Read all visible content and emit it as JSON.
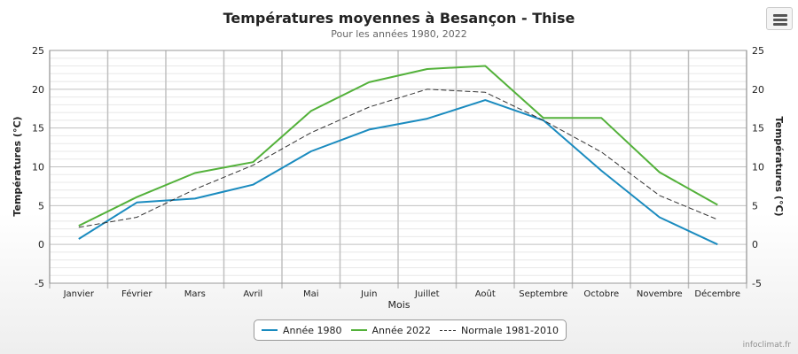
{
  "chart_data": {
    "type": "line",
    "title": "Températures moyennes à Besançon - Thise",
    "subtitle": "Pour les années 1980, 2022",
    "xlabel": "Mois",
    "ylabel": "Températures (°C)",
    "ylabel_right": "Températures (°C)",
    "ylim": [
      -5,
      25
    ],
    "yticks": [
      -5,
      0,
      5,
      10,
      15,
      20,
      25
    ],
    "grid": true,
    "legend_position": "bottom",
    "categories": [
      "Janvier",
      "Février",
      "Mars",
      "Avril",
      "Mai",
      "Juin",
      "Juillet",
      "Août",
      "Septembre",
      "Octobre",
      "Novembre",
      "Décembre"
    ],
    "series": [
      {
        "name": "Année 1980",
        "color": "#1a8bbf",
        "style": "solid",
        "values": [
          0.7,
          5.4,
          5.9,
          7.7,
          12.0,
          14.8,
          16.2,
          18.6,
          16.0,
          9.5,
          3.5,
          0.0
        ]
      },
      {
        "name": "Année 2022",
        "color": "#53b13a",
        "style": "solid",
        "values": [
          2.4,
          6.1,
          9.2,
          10.6,
          17.2,
          20.9,
          22.6,
          23.0,
          16.3,
          16.3,
          9.3,
          5.1
        ]
      },
      {
        "name": "Normale 1981-2010",
        "color": "#333333",
        "style": "dashed",
        "values": [
          2.2,
          3.5,
          7.1,
          10.2,
          14.4,
          17.7,
          20.0,
          19.6,
          16.0,
          11.9,
          6.3,
          3.2
        ]
      }
    ]
  },
  "credits": "infoclimat.fr",
  "menu_icon": "hamburger-menu-icon"
}
